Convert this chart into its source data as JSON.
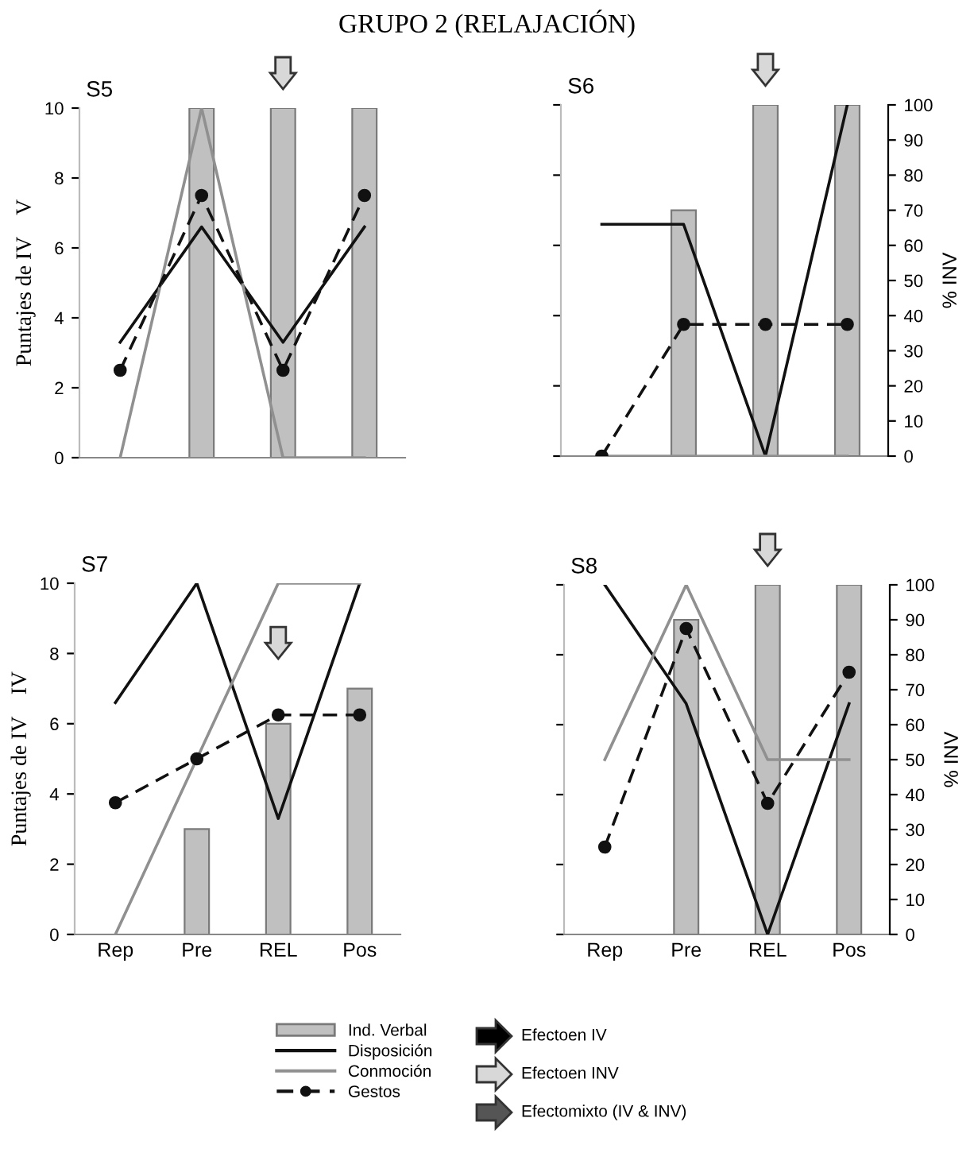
{
  "chart_data": [
    {
      "type": "bar",
      "title": "GRUPO 2 (RELAJACIÓN)",
      "subtitle": "S5",
      "ylabel": "Puntajes de IV    V",
      "categories": [
        null,
        null,
        null,
        null
      ],
      "ylim": [
        0,
        10
      ],
      "yticks": [
        0,
        2,
        4,
        6,
        8,
        10
      ],
      "legend": "bottom",
      "annotations": [
        "Efectoen IV",
        "Efectoen INV",
        "Efectomixto (IV & INV)"
      ],
      "series": [
        {
          "name": "Ind. Verbal",
          "color": "#c0c0c0",
          "values": [
            null,
            10,
            10,
            10
          ]
        },
        {
          "name": "Disposición",
          "type": "line",
          "color": "#111111",
          "line_style": "solid",
          "marker": "none",
          "values": [
            3.3,
            6.6,
            3.3,
            6.6
          ]
        },
        {
          "name": "Conmoción",
          "type": "line",
          "color": "#909090",
          "line_style": "solid",
          "marker": "none",
          "values": [
            0,
            10,
            0,
            0
          ]
        },
        {
          "name": "Gestos",
          "type": "line",
          "color": "#111111",
          "line_style": "dashed",
          "marker": "circle",
          "values": [
            2.5,
            7.5,
            2.5,
            7.5
          ]
        }
      ]
    },
    {
      "type": "bar",
      "subtitle": "S6",
      "y2label": "% INV",
      "categories": [
        null,
        null,
        null,
        null
      ],
      "y2lim": [
        0,
        100
      ],
      "y2ticks": [
        0,
        10,
        20,
        30,
        40,
        50,
        60,
        70,
        80,
        90,
        100
      ],
      "series": [
        {
          "axis": "y2",
          "color": "#c0c0c0",
          "values": [
            null,
            70,
            100,
            100
          ]
        },
        {
          "type": "line",
          "axis": "y2",
          "color": "#111111",
          "line_style": "solid",
          "marker": "none",
          "values": [
            66,
            66,
            0,
            100
          ]
        },
        {
          "type": "line",
          "axis": "y2",
          "color": "#909090",
          "line_style": "solid",
          "marker": "none",
          "values": [
            0,
            0,
            0,
            0
          ]
        },
        {
          "type": "line",
          "axis": "y2",
          "color": "#111111",
          "line_style": "dashed",
          "marker": "circle",
          "values": [
            0,
            37.5,
            37.5,
            37.5
          ]
        }
      ]
    },
    {
      "type": "bar",
      "subtitle": "S7",
      "ylabel": "Puntajes de IV    IV",
      "categories": [
        "Rep",
        "Pre",
        "REL",
        "Pos"
      ],
      "ylim": [
        0,
        10
      ],
      "yticks": [
        0,
        2,
        4,
        6,
        8,
        10
      ],
      "series": [
        {
          "color": "#c0c0c0",
          "values": [
            null,
            3,
            6,
            7
          ]
        },
        {
          "type": "line",
          "color": "#111111",
          "line_style": "solid",
          "marker": "none",
          "values": [
            6.6,
            10,
            3.3,
            10
          ]
        },
        {
          "type": "line",
          "color": "#909090",
          "line_style": "solid",
          "marker": "none",
          "values": [
            0,
            5,
            10,
            10
          ]
        },
        {
          "type": "line",
          "color": "#111111",
          "line_style": "dashed",
          "marker": "circle",
          "values": [
            3.75,
            5,
            6.25,
            6.25
          ]
        }
      ]
    },
    {
      "type": "bar",
      "subtitle": "S8",
      "y2label": "% INV",
      "categories": [
        "Rep",
        "Pre",
        "REL",
        "Pos"
      ],
      "y2lim": [
        0,
        100
      ],
      "y2ticks": [
        0,
        10,
        20,
        30,
        40,
        50,
        60,
        70,
        80,
        90,
        100
      ],
      "series": [
        {
          "axis": "y2",
          "color": "#c0c0c0",
          "values": [
            null,
            90,
            100,
            100
          ]
        },
        {
          "type": "line",
          "axis": "y2",
          "color": "#111111",
          "line_style": "solid",
          "marker": "none",
          "values": [
            100,
            66,
            0,
            66
          ]
        },
        {
          "type": "line",
          "axis": "y2",
          "color": "#909090",
          "line_style": "solid",
          "marker": "none",
          "values": [
            50,
            100,
            50,
            50
          ]
        },
        {
          "type": "line",
          "axis": "y2",
          "color": "#111111",
          "line_style": "dashed",
          "marker": "circle",
          "values": [
            25,
            87.5,
            37.5,
            75
          ]
        }
      ]
    }
  ]
}
